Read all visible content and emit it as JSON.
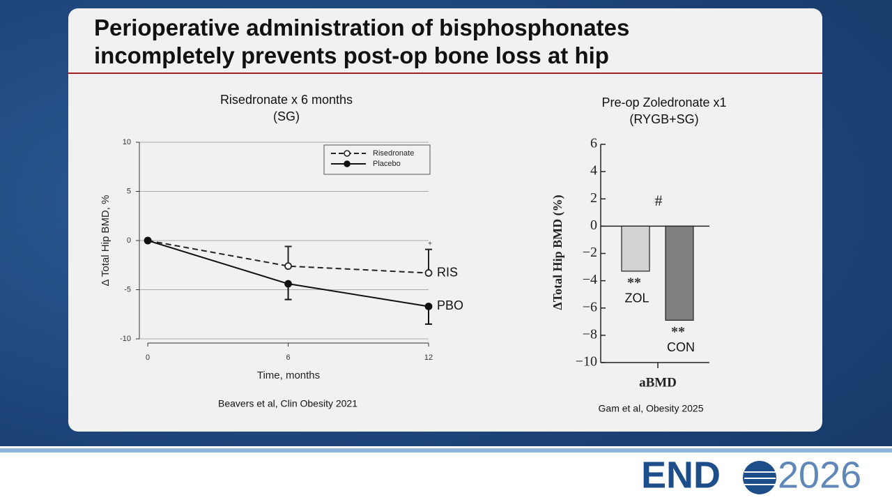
{
  "slide_title": "Perioperative administration of bisphosphonates incompletely prevents post-op bone loss at hip",
  "chart_data": [
    {
      "type": "line",
      "title": "Risedronate x 6 months",
      "subtitle": "(SG)",
      "x_label": "Time, months",
      "y_label": "Δ Total Hip BMD, %",
      "x": [
        0,
        6,
        12
      ],
      "xlim": [
        -0.36,
        12
      ],
      "xticks": [
        0,
        6,
        12
      ],
      "ylim": [
        -10,
        10
      ],
      "yticks": [
        10,
        5,
        0,
        -5,
        -10
      ],
      "grid": true,
      "legend": "top-right",
      "series": [
        {
          "name": "Risedronate",
          "label": "RIS",
          "color": "#222222",
          "marker": "open",
          "dashed": true,
          "error_direction": "up",
          "values": [
            0,
            -2.6,
            -3.3
          ],
          "errors": [
            null,
            2.0,
            2.4
          ]
        },
        {
          "name": "Placebo",
          "label": "PBO",
          "color": "#111111",
          "marker": "filled",
          "dashed": false,
          "error_direction": "down",
          "values": [
            0,
            -4.4,
            -6.7
          ],
          "errors": [
            null,
            1.6,
            1.8
          ]
        }
      ],
      "annotation": "+",
      "source": "Beavers et al, Clin Obesity 2021"
    },
    {
      "type": "bar",
      "title": "Pre-op Zoledronate x1",
      "subtitle": "(RYGB+SG)",
      "x_label": "aBMD",
      "y_label": "ΔTotal Hip BMD (%)",
      "categories": [
        "ZOL",
        "CON"
      ],
      "values": [
        -3.3,
        -6.9
      ],
      "colors": [
        "#d2d2d2",
        "#808080"
      ],
      "value_annotations": [
        "**",
        "**"
      ],
      "annotation": "#",
      "ylim": [
        -10,
        6
      ],
      "yticks": [
        6,
        4,
        2,
        0,
        {
          "value": -2,
          "label": "−2"
        },
        {
          "value": -4,
          "label": "−4"
        },
        {
          "value": -6,
          "label": "−6"
        },
        {
          "value": -8,
          "label": "−8"
        },
        {
          "value": -10,
          "label": "−10"
        }
      ],
      "source": "Gam et al, Obesity 2025"
    }
  ],
  "logo": {
    "left": "END",
    "right": "2026"
  }
}
